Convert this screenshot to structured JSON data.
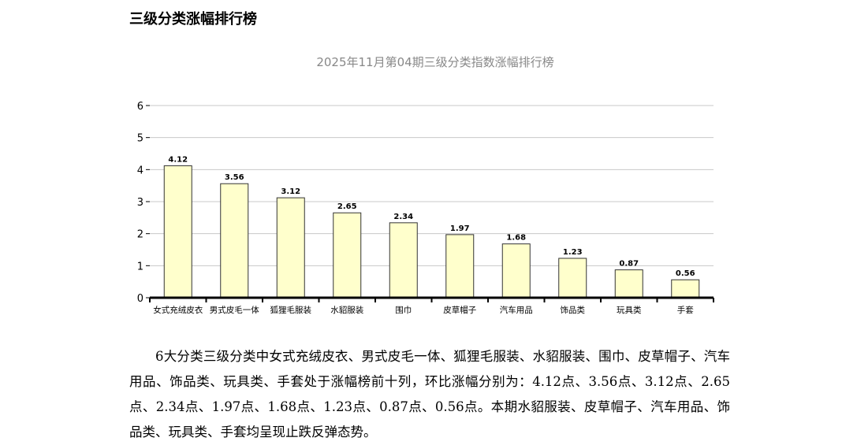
{
  "page": {
    "heading": "三级分类涨幅排行榜",
    "paragraph": "6大分类三级分类中女式充绒皮衣、男式皮毛一体、狐狸毛服装、水貂服装、围巾、皮草帽子、汽车用品、饰品类、玩具类、手套处于涨幅榜前十列，环比涨幅分别为：4.12点、3.56点、3.12点、2.65点、2.34点、1.97点、1.68点、1.23点、0.87点、0.56点。本期水貂服装、皮草帽子、汽车用品、饰品类、玩具类、手套均呈现止跌反弹态势。"
  },
  "chart_data": {
    "type": "bar",
    "title": "2025年11月第04期三级分类指数涨幅排行榜",
    "categories": [
      "女式充绒皮衣",
      "男式皮毛一体",
      "狐狸毛服装",
      "水貂服装",
      "围巾",
      "皮草帽子",
      "汽车用品",
      "饰品类",
      "玩具类",
      "手套"
    ],
    "values": [
      4.12,
      3.56,
      3.12,
      2.65,
      2.34,
      1.97,
      1.68,
      1.23,
      0.87,
      0.56
    ],
    "value_labels": [
      "4.12",
      "3.56",
      "3.12",
      "2.65",
      "2.34",
      "1.97",
      "1.68",
      "1.23",
      "0.87",
      "0.56"
    ],
    "yticks": [
      "0",
      "1",
      "2",
      "3",
      "4",
      "5",
      "6"
    ],
    "ylim": [
      0,
      6
    ],
    "grid": true,
    "legend": "none",
    "colors": {
      "bar_fill": "#ffffcc",
      "bar_stroke": "#333333",
      "grid": "#c8c8c8",
      "axis": "#000000",
      "title": "#888888"
    }
  }
}
